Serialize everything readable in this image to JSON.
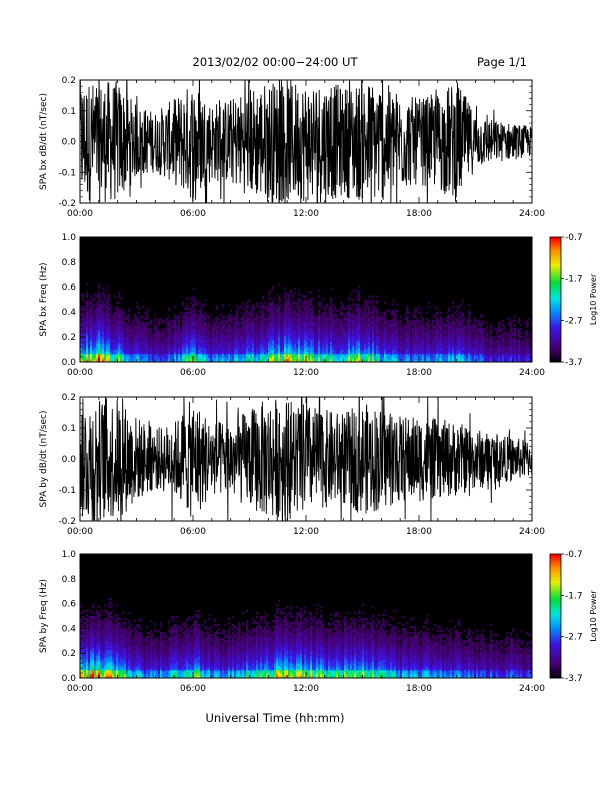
{
  "header": {
    "title": "2013/02/02  00:00−24:00 UT",
    "page": "Page 1/1"
  },
  "footer": {
    "xlabel": "Universal Time (hh:mm)"
  },
  "colorbar": {
    "label": "Log10 Power",
    "ticks": [
      "-0.7",
      "-1.7",
      "-2.7",
      "-3.7"
    ],
    "range": [
      -3.7,
      -0.7
    ]
  },
  "chart_data": [
    {
      "type": "line",
      "ylabel": "SPA bx dB/dt (nT/sec)",
      "xlim": [
        "00:00",
        "24:00"
      ],
      "ylim": [
        -0.2,
        0.2
      ],
      "x_ticks": [
        "00:00",
        "06:00",
        "12:00",
        "18:00",
        "24:00"
      ],
      "y_ticks": [
        "0.2",
        "0.1",
        "0.0",
        "-0.1",
        "-0.2"
      ],
      "envelope_hours": [
        0,
        1,
        2,
        3,
        4,
        5,
        6,
        7,
        8,
        9,
        10,
        11,
        12,
        13,
        14,
        15,
        16,
        17,
        18,
        19,
        20,
        21,
        22,
        23,
        24
      ],
      "envelope_amplitude": [
        0.2,
        0.2,
        0.2,
        0.12,
        0.1,
        0.14,
        0.2,
        0.13,
        0.14,
        0.18,
        0.2,
        0.2,
        0.2,
        0.2,
        0.18,
        0.2,
        0.2,
        0.16,
        0.14,
        0.16,
        0.2,
        0.09,
        0.07,
        0.06,
        0.05
      ]
    },
    {
      "type": "heatmap",
      "ylabel": "SPA bx Freq (Hz)",
      "xlim": [
        "00:00",
        "24:00"
      ],
      "ylim": [
        0.0,
        1.0
      ],
      "x_ticks": [
        "00:00",
        "06:00",
        "12:00",
        "18:00",
        "24:00"
      ],
      "y_ticks": [
        "1.0",
        "0.8",
        "0.6",
        "0.4",
        "0.2",
        "0.0"
      ],
      "activity_hours": [
        0,
        1,
        2,
        3,
        4,
        5,
        6,
        7,
        8,
        9,
        10,
        11,
        12,
        13,
        14,
        15,
        16,
        17,
        18,
        19,
        20,
        21,
        22,
        23,
        24
      ],
      "activity_level": [
        0.6,
        0.75,
        0.55,
        0.35,
        0.3,
        0.35,
        0.55,
        0.35,
        0.35,
        0.45,
        0.55,
        0.65,
        0.6,
        0.5,
        0.55,
        0.6,
        0.45,
        0.35,
        0.3,
        0.35,
        0.4,
        0.3,
        0.25,
        0.25,
        0.2
      ]
    },
    {
      "type": "line",
      "ylabel": "SPA by dB/dt (nT/sec)",
      "xlim": [
        "00:00",
        "24:00"
      ],
      "ylim": [
        -0.2,
        0.2
      ],
      "x_ticks": [
        "00:00",
        "06:00",
        "12:00",
        "18:00",
        "24:00"
      ],
      "y_ticks": [
        "0.2",
        "0.1",
        "0.0",
        "-0.1",
        "-0.2"
      ],
      "envelope_hours": [
        0,
        1,
        2,
        3,
        4,
        5,
        6,
        7,
        8,
        9,
        10,
        11,
        12,
        13,
        14,
        15,
        16,
        17,
        18,
        19,
        20,
        21,
        22,
        23,
        24
      ],
      "envelope_amplitude": [
        0.2,
        0.2,
        0.2,
        0.14,
        0.1,
        0.12,
        0.2,
        0.12,
        0.13,
        0.16,
        0.2,
        0.2,
        0.18,
        0.16,
        0.15,
        0.18,
        0.17,
        0.14,
        0.14,
        0.13,
        0.12,
        0.1,
        0.08,
        0.07,
        0.06
      ]
    },
    {
      "type": "heatmap",
      "ylabel": "SPA by Freq (Hz)",
      "xlim": [
        "00:00",
        "24:00"
      ],
      "ylim": [
        0.0,
        1.0
      ],
      "x_ticks": [
        "00:00",
        "06:00",
        "12:00",
        "18:00",
        "24:00"
      ],
      "y_ticks": [
        "1.0",
        "0.8",
        "0.6",
        "0.4",
        "0.2",
        "0.0"
      ],
      "activity_hours": [
        0,
        1,
        2,
        3,
        4,
        5,
        6,
        7,
        8,
        9,
        10,
        11,
        12,
        13,
        14,
        15,
        16,
        17,
        18,
        19,
        20,
        21,
        22,
        23,
        24
      ],
      "activity_level": [
        0.65,
        0.75,
        0.6,
        0.4,
        0.35,
        0.4,
        0.6,
        0.4,
        0.4,
        0.5,
        0.6,
        0.7,
        0.6,
        0.55,
        0.55,
        0.6,
        0.5,
        0.4,
        0.4,
        0.35,
        0.35,
        0.3,
        0.3,
        0.3,
        0.25
      ]
    }
  ]
}
